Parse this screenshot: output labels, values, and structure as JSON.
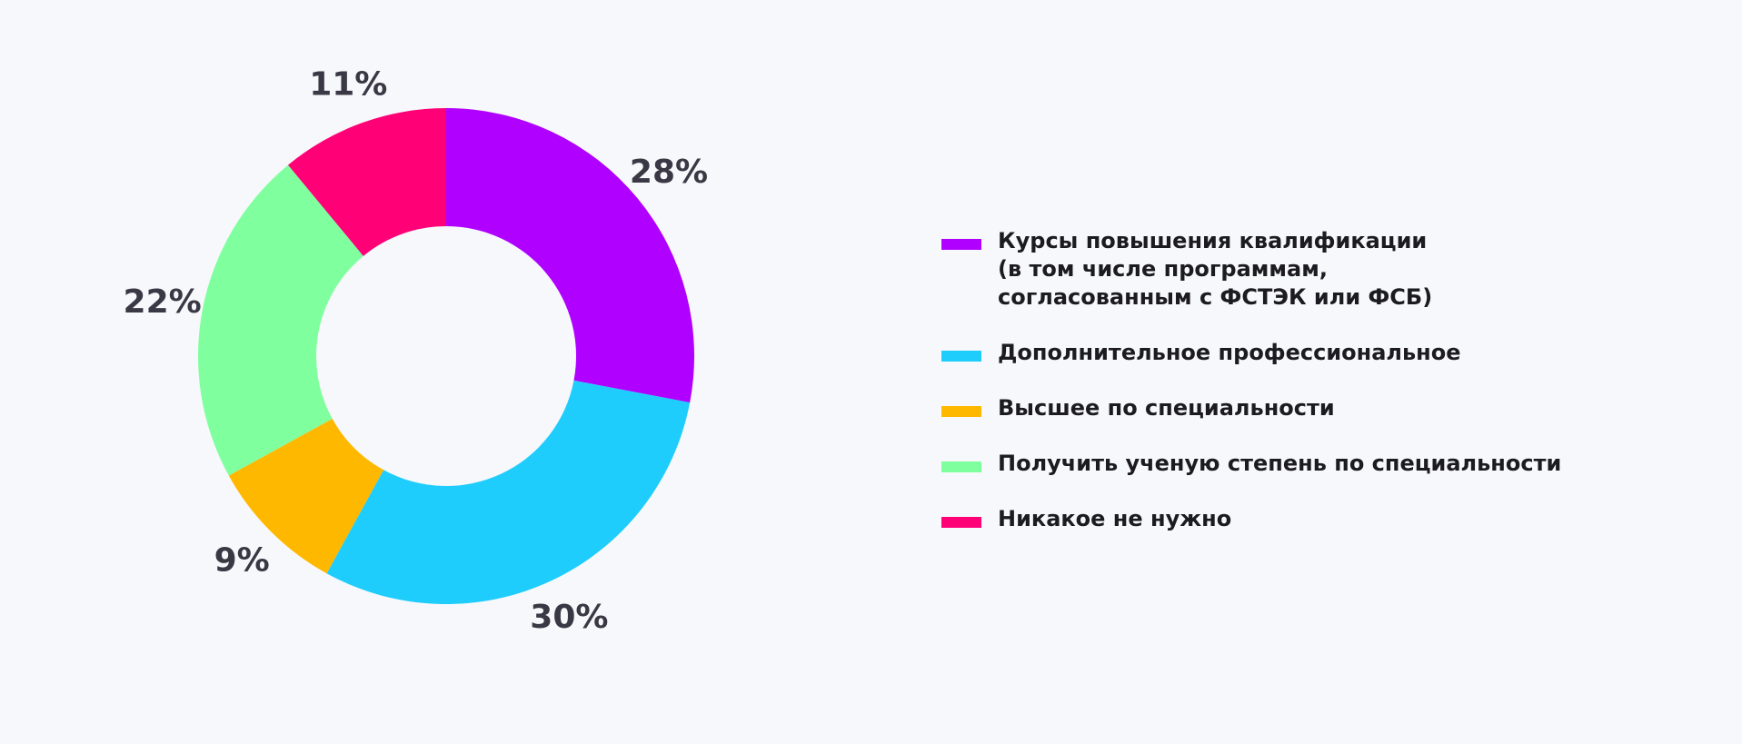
{
  "chart_data": {
    "type": "pie",
    "variant": "donut",
    "categories": [
      "Курсы повышения квалификации\n(в том числе программам,\nсогласованным с ФСТЭК или ФСБ)",
      "Дополнительное профессиональное",
      "Высшее по специальности",
      "Получить ученую степень по специальности",
      "Никакое не нужно"
    ],
    "values": [
      28,
      30,
      9,
      22,
      11
    ],
    "value_labels": [
      "28%",
      "30%",
      "9%",
      "22%",
      "11%"
    ],
    "colors": [
      "#b000ff",
      "#1fcdfd",
      "#ffb800",
      "#80ff9f",
      "#ff0077"
    ],
    "start": "12 o'clock, clockwise",
    "legend_position": "right"
  }
}
